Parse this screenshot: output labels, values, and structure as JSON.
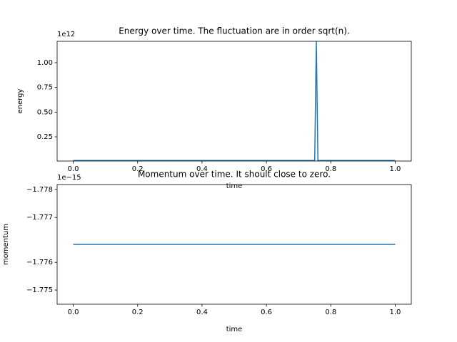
{
  "chart_data": [
    {
      "type": "line",
      "title": "Energy over time. The fluctuation are in order sqrt(n).",
      "x_label": "time",
      "y_label": "energy",
      "y_offset": "1e12",
      "x": [
        0,
        0.75,
        0.755,
        0.76,
        1
      ],
      "series": [
        {
          "color": "#1f77b4",
          "values": [
            0.01,
            0.01,
            1.22,
            0.01,
            0.01
          ]
        }
      ],
      "xlim": [
        -0.05,
        1.05
      ],
      "xticks": [
        {
          "value": 0,
          "label": "0.0"
        },
        0.2,
        0.4,
        0.6,
        0.8,
        {
          "value": 1,
          "label": "1.0"
        }
      ],
      "ylim": [
        0.005,
        1.216
      ],
      "yticks": [
        0.25,
        {
          "value": 0.5,
          "label": "0.50"
        },
        0.75,
        {
          "value": 1,
          "label": "1.00"
        }
      ]
    },
    {
      "type": "line",
      "title": "Momentum over time. It shoult close to zero.",
      "x_label": "time",
      "y_label": "momentum",
      "y_offset": "1e−15",
      "x": [
        0,
        1
      ],
      "series": [
        {
          "color": "#1f77b4",
          "values": [
            -1.7766,
            -1.7766
          ]
        }
      ],
      "xlim": [
        -0.05,
        1.05
      ],
      "xticks": [
        {
          "value": 0,
          "label": "0.0"
        },
        0.2,
        0.4,
        0.6,
        0.8,
        {
          "value": 1,
          "label": "1.0"
        }
      ],
      "ylim": [
        -1.775,
        -1.7782
      ],
      "yticks": [
        {
          "value": -1.77807,
          "label": "−1.778"
        },
        {
          "value": -1.77732,
          "label": "−1.777"
        },
        {
          "value": -1.77612,
          "label": "−1.776"
        },
        {
          "value": -1.77538,
          "label": "−1.775"
        }
      ]
    }
  ]
}
